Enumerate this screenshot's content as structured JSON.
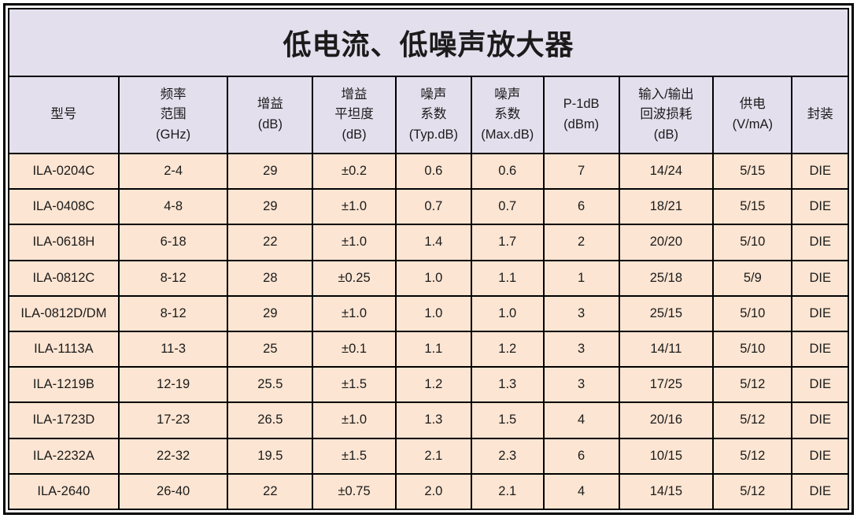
{
  "title": "低电流、低噪声放大器",
  "colors": {
    "header_bg": "#e3dfed",
    "row_bg": "#fce5d2",
    "border": "#000000",
    "text": "#1b1b1b",
    "page_bg": "#ffffff"
  },
  "table": {
    "columns": [
      {
        "id": "model",
        "lines": [
          "型号"
        ]
      },
      {
        "id": "freq-range",
        "lines": [
          "频率",
          "范围",
          "(GHz)"
        ]
      },
      {
        "id": "gain",
        "lines": [
          "增益",
          "(dB)"
        ]
      },
      {
        "id": "flatness",
        "lines": [
          "增益",
          "平坦度",
          "(dB)"
        ]
      },
      {
        "id": "nf-typ",
        "lines": [
          "噪声",
          "系数",
          "(Typ.dB)"
        ]
      },
      {
        "id": "nf-max",
        "lines": [
          "噪声",
          "系数",
          "(Max.dB)"
        ]
      },
      {
        "id": "p1db",
        "lines": [
          "P-1dB",
          "(dBm)"
        ]
      },
      {
        "id": "return-loss",
        "lines": [
          "输入/输出",
          "回波损耗",
          "(dB)"
        ]
      },
      {
        "id": "supply",
        "lines": [
          "供电",
          "(V/mA)"
        ]
      },
      {
        "id": "package",
        "lines": [
          "封装"
        ]
      }
    ],
    "rows": [
      [
        "ILA-0204C",
        "2-4",
        "29",
        "±0.2",
        "0.6",
        "0.6",
        "7",
        "14/24",
        "5/15",
        "DIE"
      ],
      [
        "ILA-0408C",
        "4-8",
        "29",
        "±1.0",
        "0.7",
        "0.7",
        "6",
        "18/21",
        "5/15",
        "DIE"
      ],
      [
        "ILA-0618H",
        "6-18",
        "22",
        "±1.0",
        "1.4",
        "1.7",
        "2",
        "20/20",
        "5/10",
        "DIE"
      ],
      [
        "ILA-0812C",
        "8-12",
        "28",
        "±0.25",
        "1.0",
        "1.1",
        "1",
        "25/18",
        "5/9",
        "DIE"
      ],
      [
        "ILA-0812D/DM",
        "8-12",
        "29",
        "±1.0",
        "1.0",
        "1.0",
        "3",
        "25/15",
        "5/10",
        "DIE"
      ],
      [
        "ILA-1113A",
        "11-3",
        "25",
        "±0.1",
        "1.1",
        "1.2",
        "3",
        "14/11",
        "5/10",
        "DIE"
      ],
      [
        "ILA-1219B",
        "12-19",
        "25.5",
        "±1.5",
        "1.2",
        "1.3",
        "3",
        "17/25",
        "5/12",
        "DIE"
      ],
      [
        "ILA-1723D",
        "17-23",
        "26.5",
        "±1.0",
        "1.3",
        "1.5",
        "4",
        "20/16",
        "5/12",
        "DIE"
      ],
      [
        "ILA-2232A",
        "22-32",
        "19.5",
        "±1.5",
        "2.1",
        "2.3",
        "6",
        "10/15",
        "5/12",
        "DIE"
      ],
      [
        "ILA-2640",
        "26-40",
        "22",
        "±0.75",
        "2.0",
        "2.1",
        "4",
        "14/15",
        "5/12",
        "DIE"
      ]
    ]
  }
}
